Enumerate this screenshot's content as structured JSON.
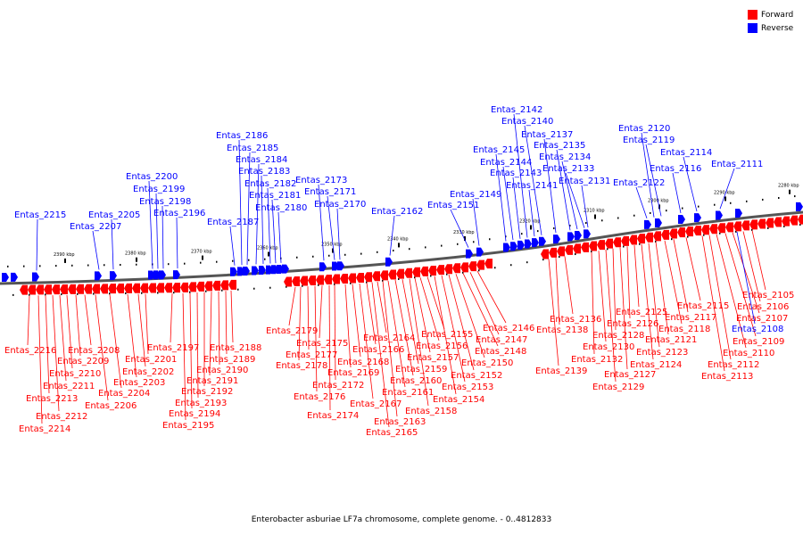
{
  "legend": [
    {
      "label": "Forward",
      "color": "#ff0000"
    },
    {
      "label": "Reverse",
      "color": "#0000ff"
    }
  ],
  "caption": "Enterobacter asburiae LF7a chromosome, complete genome. - 0..4812833",
  "scale_ticks": [
    "2390 kbp",
    "2380 kbp",
    "2370 kbp",
    "2360 kbp",
    "2350 kbp",
    "2340 kbp",
    "2330 kbp",
    "2320 kbp",
    "2310 kbp",
    "2300 kbp",
    "2290 kbp",
    "2280 kbp"
  ],
  "reverse_genes": [
    "Entas_2215",
    "Entas_2207",
    "Entas_2205",
    "Entas_2200",
    "Entas_2199",
    "Entas_2198",
    "Entas_2196",
    "Entas_2187",
    "Entas_2186",
    "Entas_2185",
    "Entas_2184",
    "Entas_2183",
    "Entas_2182",
    "Entas_2181",
    "Entas_2180",
    "Entas_2173",
    "Entas_2171",
    "Entas_2170",
    "Entas_2162",
    "Entas_2151",
    "Entas_2149",
    "Entas_2145",
    "Entas_2144",
    "Entas_2143",
    "Entas_2142",
    "Entas_2141",
    "Entas_2140",
    "Entas_2137",
    "Entas_2135",
    "Entas_2134",
    "Entas_2133",
    "Entas_2131",
    "Entas_2122",
    "Entas_2120",
    "Entas_2119",
    "Entas_2116",
    "Entas_2114",
    "Entas_2111",
    "Entas_2108"
  ],
  "forward_genes": [
    "Entas_2216",
    "Entas_2214",
    "Entas_2213",
    "Entas_2212",
    "Entas_2211",
    "Entas_2210",
    "Entas_2209",
    "Entas_2208",
    "Entas_2206",
    "Entas_2204",
    "Entas_2203",
    "Entas_2202",
    "Entas_2201",
    "Entas_2197",
    "Entas_2195",
    "Entas_2194",
    "Entas_2193",
    "Entas_2192",
    "Entas_2191",
    "Entas_2190",
    "Entas_2189",
    "Entas_2188",
    "Entas_2179",
    "Entas_2178",
    "Entas_2177",
    "Entas_2176",
    "Entas_2175",
    "Entas_2174",
    "Entas_2172",
    "Entas_2169",
    "Entas_2168",
    "Entas_2167",
    "Entas_2166",
    "Entas_2165",
    "Entas_2164",
    "Entas_2163",
    "Entas_2161",
    "Entas_2160",
    "Entas_2159",
    "Entas_2158",
    "Entas_2157",
    "Entas_2156",
    "Entas_2155",
    "Entas_2154",
    "Entas_2153",
    "Entas_2152",
    "Entas_2150",
    "Entas_2148",
    "Entas_2147",
    "Entas_2146",
    "Entas_2139",
    "Entas_2138",
    "Entas_2136",
    "Entas_2132",
    "Entas_2130",
    "Entas_2129",
    "Entas_2128",
    "Entas_2127",
    "Entas_2126",
    "Entas_2125",
    "Entas_2124",
    "Entas_2123",
    "Entas_2121",
    "Entas_2118",
    "Entas_2117",
    "Entas_2115",
    "Entas_2113",
    "Entas_2112",
    "Entas_2110",
    "Entas_2109",
    "Entas_2107",
    "Entas_2106",
    "Entas_2105"
  ]
}
